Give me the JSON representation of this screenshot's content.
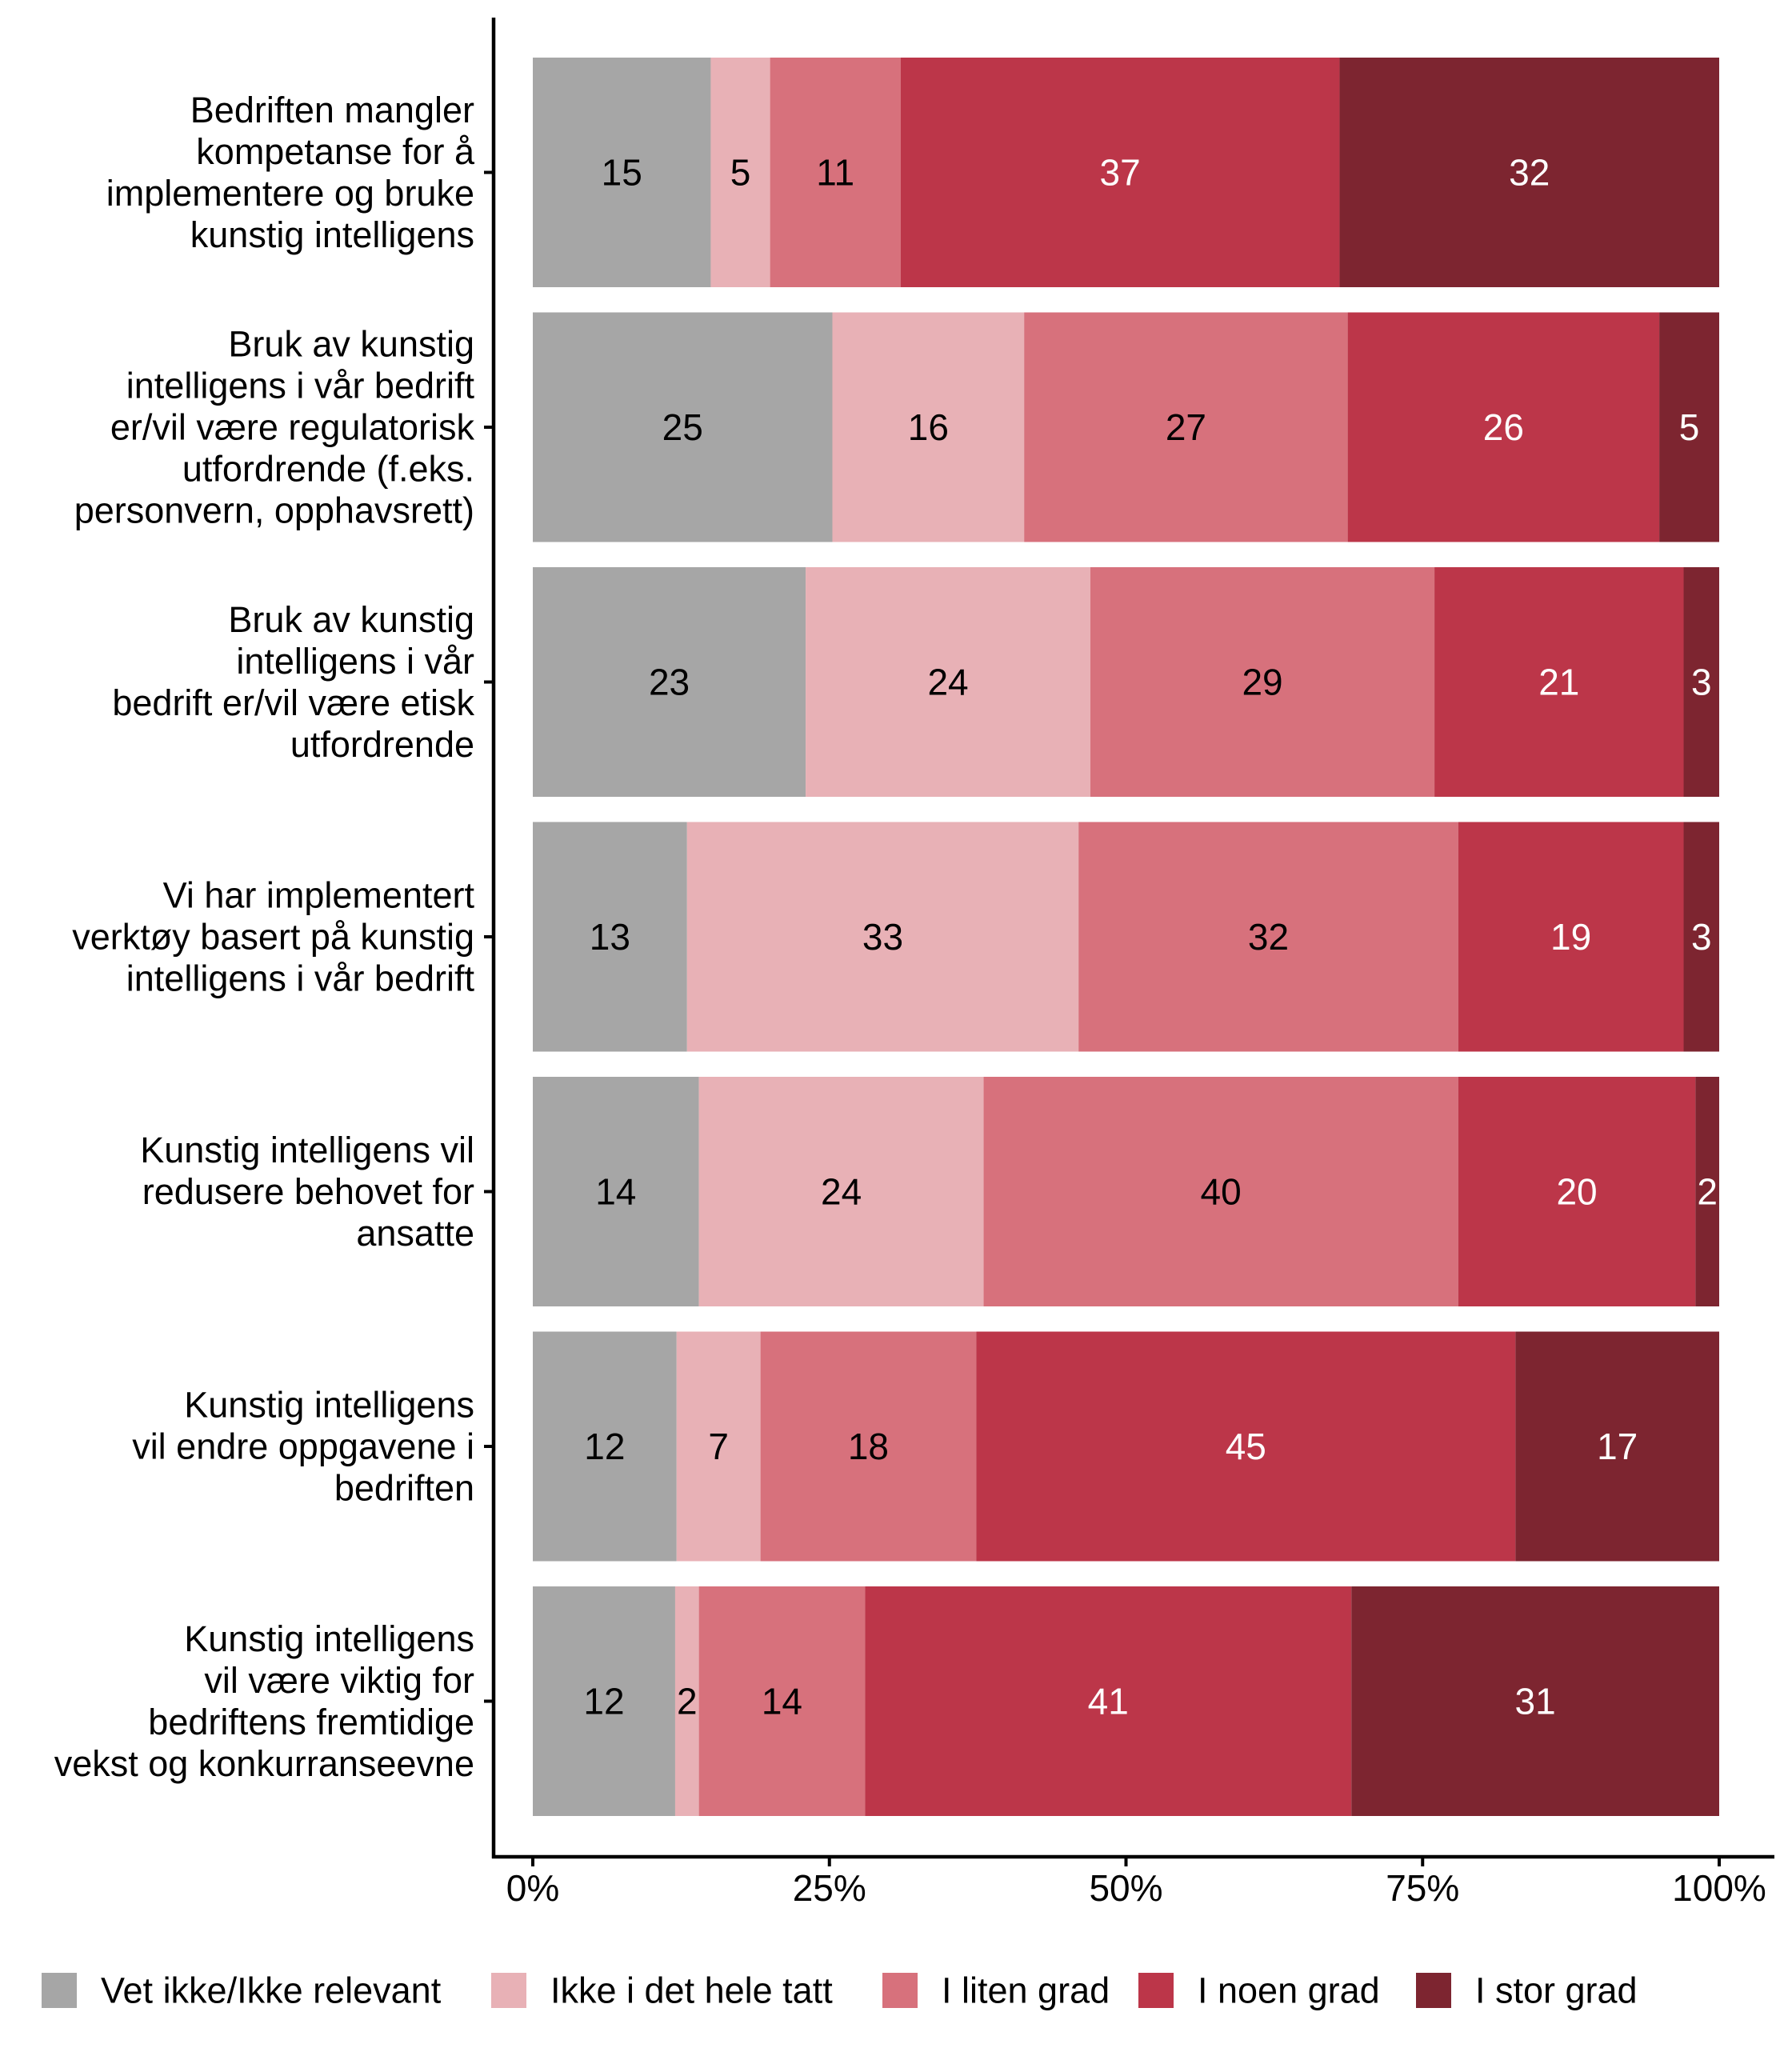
{
  "chart_data": {
    "type": "bar",
    "orientation": "horizontal",
    "stacked": true,
    "normalized": true,
    "title": "",
    "xlabel": "",
    "ylabel": "",
    "xlim": [
      0,
      100
    ],
    "x_ticks": [
      "0%",
      "25%",
      "50%",
      "75%",
      "100%"
    ],
    "x_tick_values": [
      0,
      25,
      50,
      75,
      100
    ],
    "grid": false,
    "legend_position": "bottom",
    "categories": [
      "Bedriften mangler kompetanse for å implementere og bruke kunstig intelligens",
      "Bruk av kunstig intelligens i vår bedrift er/vil være regulatorisk utfordrende (f.eks. personvern, opphavsrett)",
      "Bruk av kunstig intelligens i vår bedrift er/vil være etisk utfordrende",
      "Vi har implementert verktøy basert på kunstig intelligens i vår bedrift",
      "Kunstig intelligens vil redusere behovet for ansatte",
      "Kunstig intelligens vil endre oppgavene i bedriften",
      "Kunstig intelligens vil være viktig for bedriftens fremtidige vekst og konkurranseevne"
    ],
    "category_label_lines": [
      [
        "Bedriften mangler",
        "kompetanse for å",
        "implementere og bruke",
        "kunstig intelligens"
      ],
      [
        "Bruk av kunstig",
        "intelligens i vår bedrift",
        "er/vil være regulatorisk",
        "utfordrende (f.eks.",
        "personvern, opphavsrett)"
      ],
      [
        "Bruk av kunstig",
        "intelligens i vår",
        "bedrift er/vil være etisk",
        "utfordrende"
      ],
      [
        "Vi har implementert",
        "verktøy basert på kunstig",
        "intelligens i vår bedrift"
      ],
      [
        "Kunstig intelligens vil",
        "redusere behovet for",
        "ansatte"
      ],
      [
        "Kunstig intelligens",
        "vil endre oppgavene i",
        "bedriften"
      ],
      [
        "Kunstig intelligens",
        "vil være viktig for",
        "bedriftens fremtidige",
        "vekst og konkurranseevne"
      ]
    ],
    "series": [
      {
        "name": "Vet ikke/Ikke relevant",
        "color": "#a6a6a6",
        "label_color": "#000000",
        "values": [
          15,
          25,
          23,
          13,
          14,
          12,
          12
        ]
      },
      {
        "name": "Ikke i det hele tatt",
        "color": "#e8b1b6",
        "label_color": "#000000",
        "values": [
          5,
          16,
          24,
          33,
          24,
          7,
          2
        ]
      },
      {
        "name": "I liten grad",
        "color": "#d7717c",
        "label_color": "#000000",
        "values": [
          11,
          27,
          29,
          32,
          40,
          18,
          14
        ]
      },
      {
        "name": "I noen grad",
        "color": "#bc3649",
        "label_color": "#ffffff",
        "values": [
          37,
          26,
          21,
          19,
          20,
          45,
          41
        ]
      },
      {
        "name": "I stor grad",
        "color": "#7d2530",
        "label_color": "#ffffff",
        "values": [
          32,
          5,
          3,
          3,
          2,
          17,
          31
        ]
      }
    ]
  }
}
